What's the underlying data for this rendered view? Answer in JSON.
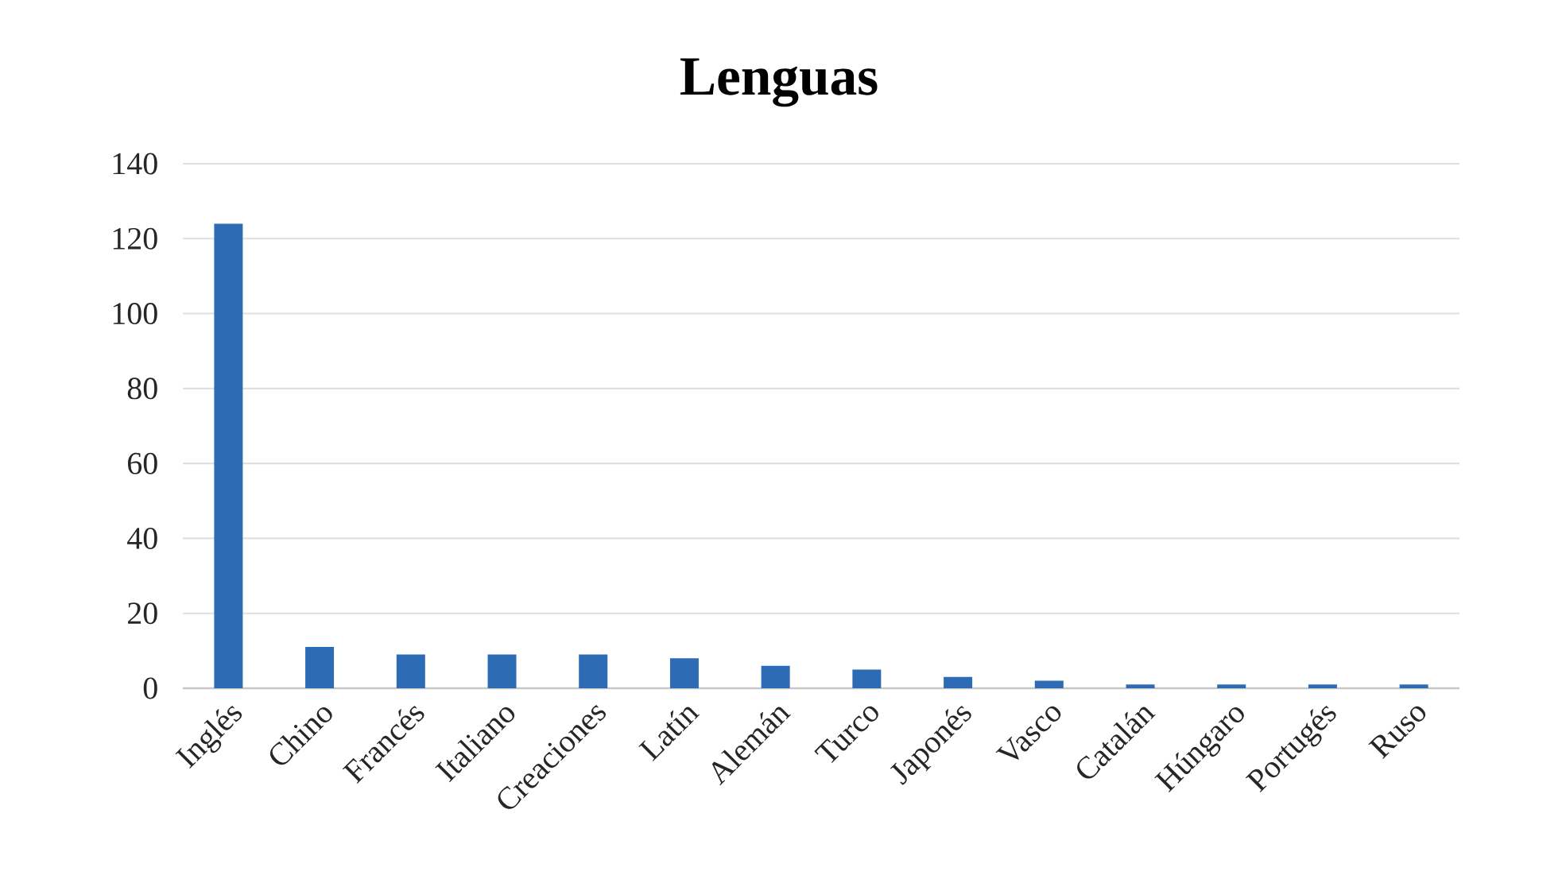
{
  "chart_data": {
    "type": "bar",
    "title": "Lenguas",
    "categories": [
      "Inglés",
      "Chino",
      "Francés",
      "Italiano",
      "Creaciones",
      "Latín",
      "Alemán",
      "Turco",
      "Japonés",
      "Vasco",
      "Catalán",
      "Húngaro",
      "Portugés",
      "Ruso"
    ],
    "values": [
      124,
      11,
      9,
      9,
      9,
      8,
      6,
      5,
      3,
      2,
      1,
      1,
      1,
      1
    ],
    "color": "#2e6bb5",
    "ylim": [
      0,
      140
    ],
    "yticks": [
      0,
      20,
      40,
      60,
      80,
      100,
      120,
      140
    ],
    "grid": "y"
  }
}
